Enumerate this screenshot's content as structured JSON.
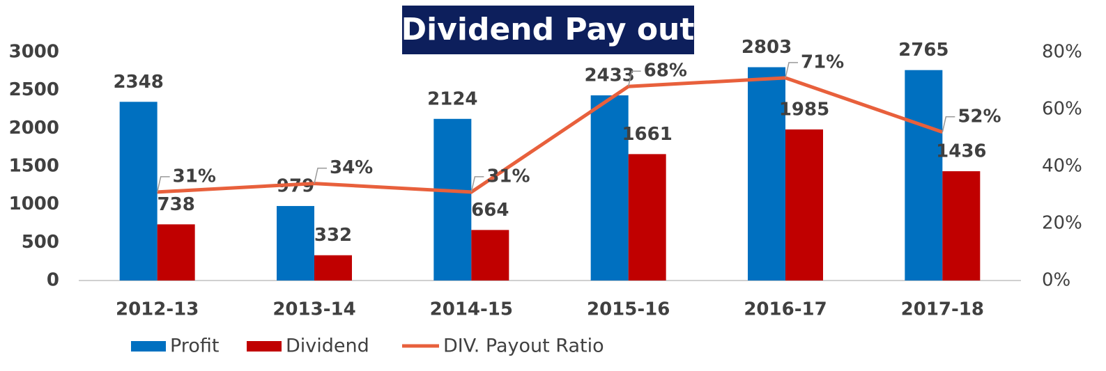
{
  "chart_data": {
    "type": "bar",
    "title": "Dividend Pay out",
    "categories": [
      "2012-13",
      "2013-14",
      "2014-15",
      "2015-16",
      "2016-17",
      "2017-18"
    ],
    "series": [
      {
        "name": "Profit",
        "color": "#0070c0",
        "values": [
          2348,
          979,
          2124,
          2433,
          2803,
          2765
        ]
      },
      {
        "name": "Dividend",
        "color": "#c00000",
        "values": [
          738,
          332,
          664,
          1661,
          1985,
          1436
        ]
      },
      {
        "name": "DIV. Payout Ratio",
        "color": "#e8603c",
        "type": "line",
        "axis": "y2",
        "values": [
          31,
          34,
          31,
          68,
          71,
          52
        ],
        "value_labels": [
          "31%",
          "34%",
          "31%",
          "68%",
          "71%",
          "52%"
        ]
      }
    ],
    "ylim": [
      0,
      3000
    ],
    "yticks": [
      0,
      500,
      1000,
      1500,
      2000,
      2500,
      3000
    ],
    "y2lim": [
      0,
      80
    ],
    "y2ticks": [
      {
        "value": 0,
        "label": "0%"
      },
      {
        "value": 20,
        "label": "20%"
      },
      {
        "value": 40,
        "label": "40%"
      },
      {
        "value": 60,
        "label": "60%"
      },
      {
        "value": 80,
        "label": "80%"
      }
    ]
  }
}
